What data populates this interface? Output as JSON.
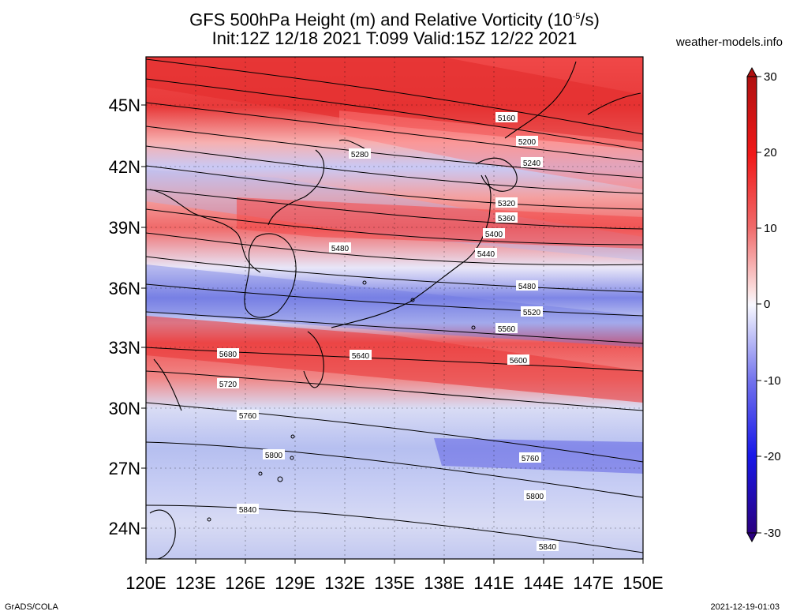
{
  "title": {
    "line1_pre": "GFS 500hPa Height (m) and Relative Vorticity (10",
    "line1_sup": "-5",
    "line1_post": "/s)",
    "line2": "Init:12Z 12/18 2021 T:099 Valid:15Z 12/22 2021"
  },
  "site": "weather-models.info",
  "credit": "GrADS/COLA",
  "timestamp": "2021-12-19-01:03",
  "map": {
    "lon_labels": [
      "120E",
      "123E",
      "126E",
      "129E",
      "132E",
      "135E",
      "138E",
      "141E",
      "144E",
      "147E",
      "150E"
    ],
    "lat_labels": [
      "45N",
      "42N",
      "39N",
      "36N",
      "33N",
      "30N",
      "27N",
      "24N"
    ],
    "contour_labels": [
      "5160",
      "5200",
      "5240",
      "5280",
      "5320",
      "5360",
      "5400",
      "5440",
      "5480",
      "5480",
      "5520",
      "5560",
      "5600",
      "5640",
      "5680",
      "5720",
      "5760",
      "5760",
      "5800",
      "5800",
      "5840",
      "5840"
    ]
  },
  "colorbar": {
    "tick_labels": [
      "30",
      "20",
      "10",
      "0",
      "-10",
      "-20",
      "-30"
    ],
    "colors": {
      "max": "#b01010",
      "pos": "#f03030",
      "zero": "#f8f8ff",
      "neg": "#3030e0",
      "min": "#2a0080"
    }
  }
}
